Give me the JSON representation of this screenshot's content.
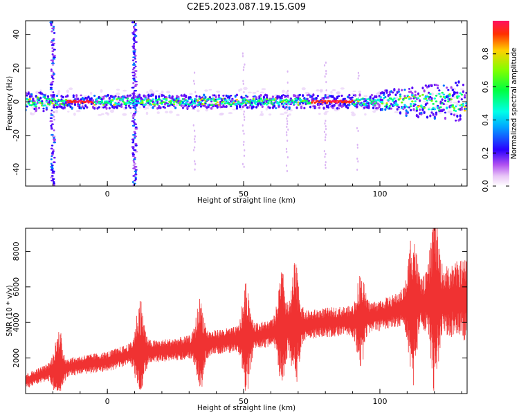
{
  "title": "C2E5.2023.087.19.15.G09",
  "chart_data": [
    {
      "type": "heatmap",
      "xlabel": "Height of straight line (km)",
      "ylabel": "Frequency (Hz)",
      "xlim": [
        -30,
        132
      ],
      "ylim": [
        -50,
        48
      ],
      "xticks": [
        0,
        50,
        100
      ],
      "yticks": [
        -40,
        -20,
        0,
        20,
        40
      ],
      "colorbar": {
        "label": "Normalized spectral amplitude",
        "range": [
          0,
          1
        ],
        "ticks": [
          0.0,
          0.2,
          0.4,
          0.6,
          0.8
        ],
        "colormap": "rainbow-magenta-to-red"
      },
      "features": {
        "central_band_hz": 0,
        "vertical_streaks_km": [
          -20,
          10
        ],
        "strong_segments_km": [
          [
            -15,
            -5
          ],
          [
            75,
            90
          ]
        ]
      }
    },
    {
      "type": "line",
      "xlabel": "Height of straight line (km)",
      "ylabel": "SNR (10 * v/v)",
      "xlim": [
        -30,
        132
      ],
      "ylim": [
        0,
        9300
      ],
      "xticks": [
        0,
        50,
        100
      ],
      "yticks": [
        2000,
        4000,
        6000,
        8000
      ],
      "color": "#f03232",
      "trend": {
        "x": [
          -30,
          -20,
          -10,
          0,
          10,
          20,
          30,
          40,
          50,
          60,
          70,
          80,
          90,
          100,
          110,
          120,
          132
        ],
        "y": [
          700,
          1300,
          1600,
          1800,
          2300,
          2400,
          2600,
          2900,
          3100,
          3400,
          3800,
          4000,
          4100,
          4400,
          4900,
          5200,
          5300
        ]
      },
      "spikes": [
        {
          "x": -18,
          "y": 3700
        },
        {
          "x": 12,
          "y": 5200
        },
        {
          "x": 34,
          "y": 5000
        },
        {
          "x": 51,
          "y": 6000
        },
        {
          "x": 64,
          "y": 6500
        },
        {
          "x": 69,
          "y": 7000
        },
        {
          "x": 93,
          "y": 6300
        },
        {
          "x": 112,
          "y": 8800
        },
        {
          "x": 120,
          "y": 9300
        }
      ]
    }
  ]
}
